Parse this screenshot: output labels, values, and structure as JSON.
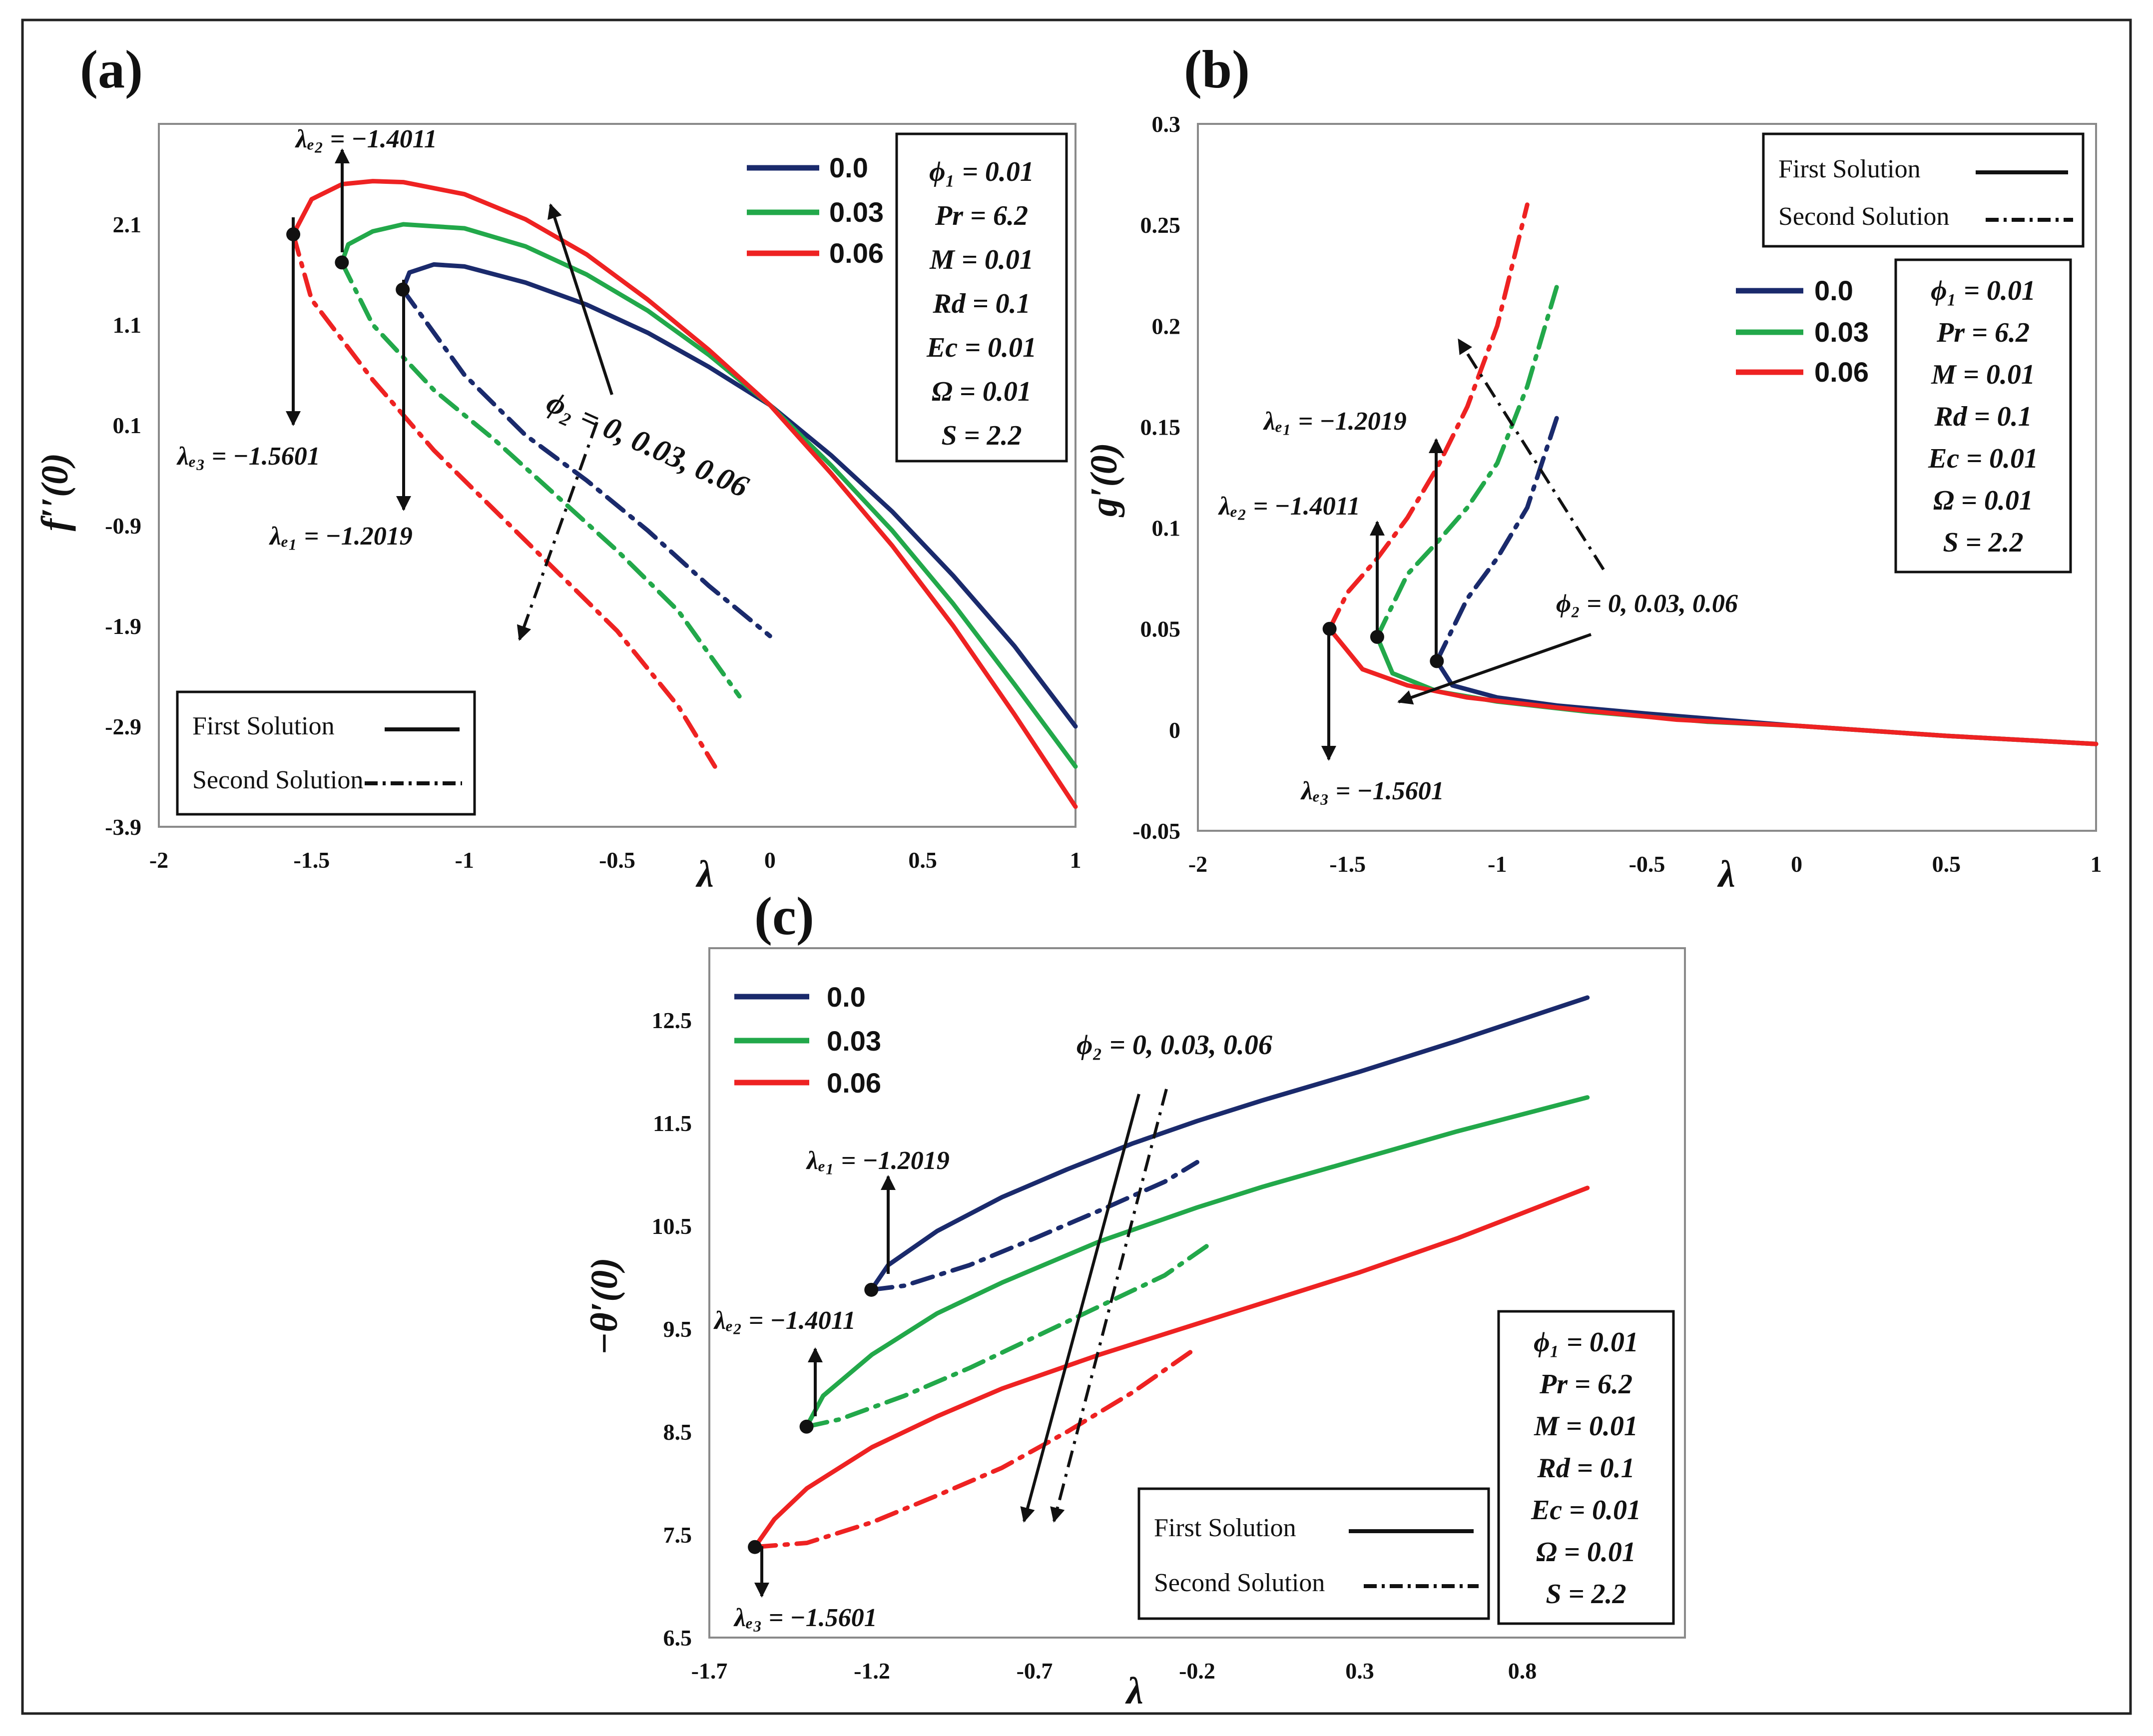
{
  "colors": {
    "c0": "#1a2a6c",
    "c003": "#22a84a",
    "c006": "#ee2222"
  },
  "solutions": {
    "first": "First Solution",
    "second": "Second Solution"
  },
  "params_lines": [
    "ϕ₁ = 0.01",
    "Pr = 6.2",
    "M = 0.01",
    "Rd = 0.1",
    "Ec = 0.01",
    "Ω = 0.01",
    "S = 2.2"
  ],
  "chart_data": [
    {
      "panel": "(a)",
      "type": "line",
      "xlabel": "λ",
      "ylabel": "f′′(0)",
      "xlim": [
        -2,
        1
      ],
      "ylim": [
        -3.9,
        3.1
      ],
      "xticks": [
        -2,
        -1.5,
        -1,
        -0.5,
        0,
        0.5,
        1
      ],
      "xtick_labels": [
        "-2",
        "-1.5",
        "-1",
        "-0.5",
        "0",
        "0.5",
        "1"
      ],
      "yticks": [
        2.1,
        1.1,
        0.1,
        -0.9,
        -1.9,
        -2.9,
        -3.9
      ],
      "ytick_labels": [
        "2.1",
        "1.1",
        "0.1",
        "-0.9",
        "-1.9",
        "-2.9",
        "-3.9"
      ],
      "legend": [
        "0.0",
        "0.03",
        "0.06"
      ],
      "annotations": {
        "lc1": "λₑ₁ = −1.2019",
        "lc2": "λₑ₂ = −1.4011",
        "lc3": "λₑ₃ = −1.5601",
        "phi2": "ϕ₂ = 0, 0.03, 0.06"
      },
      "critical_points": [
        {
          "series": "0.0",
          "x": -1.2019,
          "y": 1.45
        },
        {
          "series": "0.03",
          "x": -1.4011,
          "y": 1.72
        },
        {
          "series": "0.06",
          "x": -1.5601,
          "y": 2.0
        }
      ],
      "series": [
        {
          "name": "0.0",
          "kind": "first",
          "x": [
            -1.2019,
            -1.18,
            -1.1,
            -1.0,
            -0.8,
            -0.6,
            -0.4,
            -0.2,
            0.0,
            0.2,
            0.4,
            0.6,
            0.8,
            1.0
          ],
          "y": [
            1.45,
            1.62,
            1.7,
            1.68,
            1.52,
            1.3,
            1.02,
            0.68,
            0.3,
            -0.2,
            -0.76,
            -1.4,
            -2.1,
            -2.9
          ]
        },
        {
          "name": "0.0",
          "kind": "second",
          "x": [
            -1.2019,
            -1.0,
            -0.8,
            -0.6,
            -0.4,
            -0.2,
            0.0
          ],
          "y": [
            1.45,
            0.6,
            0.0,
            -0.45,
            -0.95,
            -1.5,
            -2.0
          ]
        },
        {
          "name": "0.03",
          "kind": "first",
          "x": [
            -1.4011,
            -1.38,
            -1.3,
            -1.2,
            -1.0,
            -0.8,
            -0.6,
            -0.4,
            -0.2,
            0.0,
            0.2,
            0.4,
            0.6,
            0.8,
            1.0
          ],
          "y": [
            1.72,
            1.9,
            2.03,
            2.1,
            2.06,
            1.88,
            1.6,
            1.24,
            0.8,
            0.3,
            -0.3,
            -0.95,
            -1.68,
            -2.48,
            -3.3
          ]
        },
        {
          "name": "0.03",
          "kind": "second",
          "x": [
            -1.4011,
            -1.3,
            -1.1,
            -0.9,
            -0.7,
            -0.5,
            -0.3,
            -0.1
          ],
          "y": [
            1.72,
            1.1,
            0.45,
            -0.05,
            -0.6,
            -1.15,
            -1.75,
            -2.6
          ]
        },
        {
          "name": "0.06",
          "kind": "first",
          "x": [
            -1.5601,
            -1.5,
            -1.4,
            -1.3,
            -1.2,
            -1.0,
            -0.8,
            -0.6,
            -0.4,
            -0.2,
            0.0,
            0.2,
            0.4,
            0.6,
            0.8,
            1.0
          ],
          "y": [
            2.0,
            2.35,
            2.5,
            2.53,
            2.52,
            2.4,
            2.15,
            1.8,
            1.35,
            0.85,
            0.3,
            -0.38,
            -1.1,
            -1.9,
            -2.78,
            -3.7
          ]
        },
        {
          "name": "0.06",
          "kind": "second",
          "x": [
            -1.5601,
            -1.5,
            -1.3,
            -1.1,
            -0.9,
            -0.7,
            -0.5,
            -0.3,
            -0.18
          ],
          "y": [
            2.0,
            1.35,
            0.55,
            -0.15,
            -0.75,
            -1.35,
            -1.95,
            -2.7,
            -3.3
          ]
        }
      ]
    },
    {
      "panel": "(b)",
      "type": "line",
      "xlabel": "λ",
      "ylabel": "g′(0)",
      "xlim": [
        -2,
        1
      ],
      "ylim": [
        -0.05,
        0.3
      ],
      "xticks": [
        -2,
        -1.5,
        -1,
        -0.5,
        0,
        0.5,
        1
      ],
      "xtick_labels": [
        "-2",
        "-1.5",
        "-1",
        "-0.5",
        "0",
        "0.5",
        "1"
      ],
      "yticks": [
        0.3,
        0.25,
        0.2,
        0.15,
        0.1,
        0.05,
        0,
        -0.05
      ],
      "ytick_labels": [
        "0.3",
        "0.25",
        "0.2",
        "0.15",
        "0.1",
        "0.05",
        "0",
        "-0.05"
      ],
      "legend": [
        "0.0",
        "0.03",
        "0.06"
      ],
      "annotations": {
        "lc1": "λₑ₁ = −1.2019",
        "lc2": "λₑ₂ = −1.4011",
        "lc3": "λₑ₃ = −1.5601",
        "phi2": "ϕ₂ = 0, 0.03, 0.06"
      },
      "critical_points": [
        {
          "series": "0.0",
          "x": -1.2019,
          "y": 0.034
        },
        {
          "series": "0.03",
          "x": -1.4011,
          "y": 0.046
        },
        {
          "series": "0.06",
          "x": -1.5601,
          "y": 0.05
        }
      ],
      "series": [
        {
          "name": "0.0",
          "kind": "first",
          "x": [
            -1.2019,
            -1.15,
            -1.0,
            -0.8,
            -0.5,
            0.0,
            0.5,
            1.0
          ],
          "y": [
            0.034,
            0.022,
            0.016,
            0.012,
            0.008,
            0.002,
            -0.003,
            -0.007
          ]
        },
        {
          "name": "0.0",
          "kind": "second",
          "x": [
            -1.2019,
            -1.1,
            -1.0,
            -0.9,
            -0.8
          ],
          "y": [
            0.034,
            0.065,
            0.085,
            0.11,
            0.155
          ]
        },
        {
          "name": "0.03",
          "kind": "first",
          "x": [
            -1.4011,
            -1.35,
            -1.2,
            -1.0,
            -0.7,
            -0.3,
            0.0,
            0.5,
            1.0
          ],
          "y": [
            0.046,
            0.028,
            0.019,
            0.014,
            0.009,
            0.004,
            0.002,
            -0.003,
            -0.007
          ]
        },
        {
          "name": "0.03",
          "kind": "second",
          "x": [
            -1.4011,
            -1.3,
            -1.2,
            -1.1,
            -1.0,
            -0.9,
            -0.8
          ],
          "y": [
            0.046,
            0.077,
            0.093,
            0.11,
            0.132,
            0.17,
            0.22
          ]
        },
        {
          "name": "0.06",
          "kind": "first",
          "x": [
            -1.5601,
            -1.45,
            -1.3,
            -1.1,
            -0.8,
            -0.4,
            0.0,
            0.5,
            1.0
          ],
          "y": [
            0.05,
            0.03,
            0.022,
            0.016,
            0.011,
            0.005,
            0.002,
            -0.003,
            -0.007
          ]
        },
        {
          "name": "0.06",
          "kind": "second",
          "x": [
            -1.5601,
            -1.5,
            -1.4,
            -1.3,
            -1.2,
            -1.1,
            -1.0,
            -0.9
          ],
          "y": [
            0.05,
            0.068,
            0.085,
            0.105,
            0.13,
            0.16,
            0.2,
            0.26
          ]
        }
      ]
    },
    {
      "panel": "(c)",
      "type": "line",
      "xlabel": "λ",
      "ylabel": "−θ′(0)",
      "xlim": [
        -1.7,
        1.3
      ],
      "ylim": [
        6.5,
        13.2
      ],
      "xticks": [
        -1.7,
        -1.2,
        -0.7,
        -0.2,
        0.3,
        0.8
      ],
      "xtick_labels": [
        "-1.7",
        "-1.2",
        "-0.7",
        "-0.2",
        "0.3",
        "0.8"
      ],
      "yticks": [
        12.5,
        11.5,
        10.5,
        9.5,
        8.5,
        7.5,
        6.5
      ],
      "ytick_labels": [
        "12.5",
        "11.5",
        "10.5",
        "9.5",
        "8.5",
        "7.5",
        "6.5"
      ],
      "legend": [
        "0.0",
        "0.03",
        "0.06"
      ],
      "annotations": {
        "lc1": "λₑ₁ = −1.2019",
        "lc2": "λₑ₂ = −1.4011",
        "lc3": "λₑ₃ = −1.5601",
        "phi2": "ϕ₂ = 0, 0.03, 0.06"
      },
      "critical_points": [
        {
          "series": "0.0",
          "x": -1.2019,
          "y": 9.88
        },
        {
          "series": "0.03",
          "x": -1.4011,
          "y": 8.55
        },
        {
          "series": "0.06",
          "x": -1.5601,
          "y": 7.38
        }
      ],
      "series": [
        {
          "name": "0.0",
          "kind": "first",
          "x": [
            -1.2019,
            -1.15,
            -1.0,
            -0.8,
            -0.6,
            -0.4,
            -0.2,
            0.0,
            0.3,
            0.6,
            1.0
          ],
          "y": [
            9.88,
            10.12,
            10.45,
            10.78,
            11.05,
            11.3,
            11.52,
            11.72,
            12.0,
            12.3,
            12.72
          ]
        },
        {
          "name": "0.0",
          "kind": "second",
          "x": [
            -1.2019,
            -1.1,
            -0.9,
            -0.7,
            -0.5,
            -0.3,
            -0.2
          ],
          "y": [
            9.88,
            9.92,
            10.12,
            10.38,
            10.65,
            10.93,
            11.12
          ]
        },
        {
          "name": "0.03",
          "kind": "first",
          "x": [
            -1.4011,
            -1.35,
            -1.2,
            -1.0,
            -0.8,
            -0.5,
            -0.2,
            0.0,
            0.3,
            0.6,
            1.0
          ],
          "y": [
            8.55,
            8.85,
            9.25,
            9.65,
            9.95,
            10.35,
            10.68,
            10.88,
            11.15,
            11.42,
            11.75
          ]
        },
        {
          "name": "0.03",
          "kind": "second",
          "x": [
            -1.4011,
            -1.3,
            -1.1,
            -0.9,
            -0.7,
            -0.5,
            -0.3,
            -0.15
          ],
          "y": [
            8.55,
            8.62,
            8.85,
            9.12,
            9.42,
            9.72,
            10.02,
            10.35
          ]
        },
        {
          "name": "0.06",
          "kind": "first",
          "x": [
            -1.5601,
            -1.5,
            -1.4,
            -1.2,
            -1.0,
            -0.8,
            -0.5,
            -0.2,
            0.0,
            0.3,
            0.6,
            1.0
          ],
          "y": [
            7.38,
            7.65,
            7.95,
            8.35,
            8.65,
            8.92,
            9.25,
            9.55,
            9.75,
            10.05,
            10.38,
            10.87
          ]
        },
        {
          "name": "0.06",
          "kind": "second",
          "x": [
            -1.5601,
            -1.4,
            -1.2,
            -1.0,
            -0.8,
            -0.6,
            -0.4,
            -0.2
          ],
          "y": [
            7.38,
            7.42,
            7.62,
            7.88,
            8.15,
            8.5,
            8.88,
            9.32
          ]
        }
      ]
    }
  ]
}
